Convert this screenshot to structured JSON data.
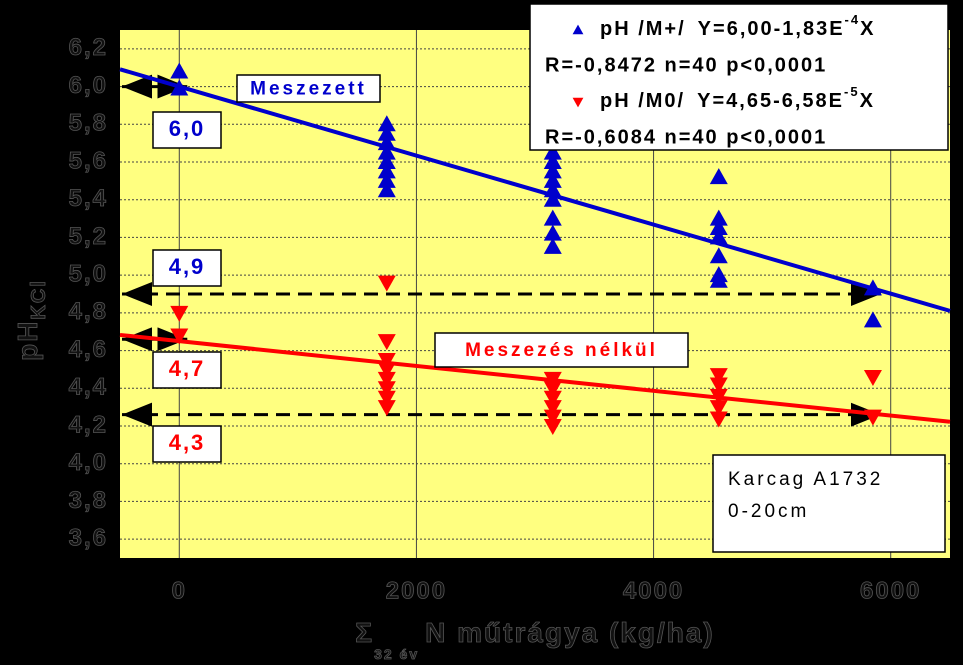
{
  "chart_data": {
    "type": "scatter",
    "x_label": {
      "symbol": "Σ",
      "sub": "32 év",
      "text": "N műtrágya (kg/ha)"
    },
    "y_label": {
      "text": "pH",
      "sub": "KCl"
    },
    "xlim": [
      -500,
      6500
    ],
    "xticks": [
      0,
      2000,
      4000,
      6000
    ],
    "ylim": [
      3.5,
      6.3
    ],
    "yticks": [
      {
        "value": 3.6,
        "label": "3,6"
      },
      {
        "value": 3.8,
        "label": "3,8"
      },
      {
        "value": 4.0,
        "label": "4,0"
      },
      {
        "value": 4.2,
        "label": "4,2"
      },
      {
        "value": 4.4,
        "label": "4,4"
      },
      {
        "value": 4.6,
        "label": "4,6"
      },
      {
        "value": 4.8,
        "label": "4,8"
      },
      {
        "value": 5.0,
        "label": "5,0"
      },
      {
        "value": 5.2,
        "label": "5,2"
      },
      {
        "value": 5.4,
        "label": "5,4"
      },
      {
        "value": 5.6,
        "label": "5,6"
      },
      {
        "value": 5.8,
        "label": "5,8"
      },
      {
        "value": 6.0,
        "label": "6,0"
      },
      {
        "value": 6.2,
        "label": "6,2"
      }
    ],
    "grid": true,
    "series": [
      {
        "name": "pH /M+/",
        "label": "Meszezett",
        "color": "#0000cc",
        "marker": "triangle-up",
        "equation": "Y=6,00-1,83E",
        "exponent": "-4",
        "equation_end": "X",
        "stats": "R=-0,8472 n=40 p<0,0001",
        "fit": {
          "intercept": 6.0,
          "slope": -0.000183
        },
        "x": [
          0,
          0,
          1750,
          1750,
          1750,
          1750,
          1750,
          1750,
          1750,
          1750,
          3150,
          3150,
          3150,
          3150,
          3150,
          3150,
          3150,
          3150,
          3150,
          4550,
          4550,
          4550,
          4550,
          4550,
          4550,
          4550,
          5850,
          5850
        ],
        "values": [
          6.08,
          5.99,
          5.8,
          5.75,
          5.7,
          5.65,
          5.6,
          5.55,
          5.5,
          5.45,
          5.65,
          5.6,
          5.55,
          5.5,
          5.45,
          5.4,
          5.3,
          5.22,
          5.15,
          5.52,
          5.3,
          5.25,
          5.2,
          5.1,
          5.0,
          4.97,
          4.93,
          4.76
        ]
      },
      {
        "name": "pH /M0/",
        "label": "Meszezés nélkül",
        "color": "#ff0000",
        "marker": "triangle-down",
        "equation": "Y=4,65-6,58E",
        "exponent": "-5",
        "equation_end": "X",
        "stats": "R=-0,6084 n=40 p<0,0001",
        "fit": {
          "intercept": 4.65,
          "slope": -6.58e-05
        },
        "x": [
          0,
          0,
          1750,
          1750,
          1750,
          1750,
          1750,
          1750,
          1750,
          1750,
          3150,
          3150,
          3150,
          3150,
          3150,
          3150,
          4550,
          4550,
          4550,
          4550,
          4550,
          5850,
          5850
        ],
        "values": [
          4.8,
          4.68,
          4.96,
          4.65,
          4.55,
          4.5,
          4.45,
          4.4,
          4.35,
          4.3,
          4.45,
          4.4,
          4.35,
          4.3,
          4.25,
          4.2,
          4.47,
          4.42,
          4.36,
          4.3,
          4.24,
          4.46,
          4.25
        ]
      }
    ],
    "annotations": [
      {
        "label": "6,0",
        "value": 6.0,
        "to": 0,
        "color": "#0000cc",
        "dashed": false
      },
      {
        "label": "4,9",
        "value": 4.9,
        "to": 5850,
        "color": "#0000cc",
        "dashed": true
      },
      {
        "label": "4,7",
        "value": 4.66,
        "to": 0,
        "color": "#ff0000",
        "dashed": false
      },
      {
        "label": "4,3",
        "value": 4.26,
        "to": 5850,
        "color": "#ff0000",
        "dashed": true
      }
    ],
    "note": [
      "Karcag A1732",
      "0-20cm"
    ]
  }
}
